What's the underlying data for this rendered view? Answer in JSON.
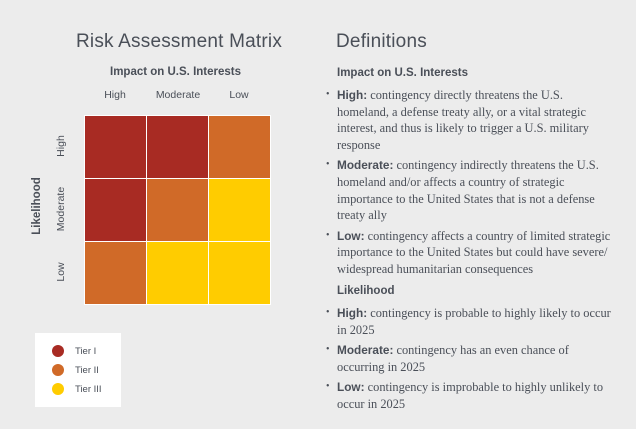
{
  "matrix": {
    "title": "Risk Assessment Matrix",
    "x_title": "Impact on U.S. Interests",
    "y_title": "Likelihood",
    "columns": [
      "High",
      "Moderate",
      "Low"
    ],
    "rows": [
      "High",
      "Moderate",
      "Low"
    ],
    "cells": [
      [
        "Tier I",
        "Tier I",
        "Tier II"
      ],
      [
        "Tier I",
        "Tier II",
        "Tier III"
      ],
      [
        "Tier II",
        "Tier III",
        "Tier III"
      ]
    ]
  },
  "legend": [
    {
      "label": "Tier I",
      "color": "#a82b23"
    },
    {
      "label": "Tier II",
      "color": "#d06a28"
    },
    {
      "label": "Tier III",
      "color": "#ffcc00"
    }
  ],
  "definitions": {
    "title": "Definitions",
    "impact": {
      "heading": "Impact on U.S. Interests",
      "items": [
        {
          "term": "High:",
          "text": " contingency directly threatens the U.S. homeland, a defense treaty ally, or a vital strategic interest, and thus is likely to trigger a U.S. military response"
        },
        {
          "term": "Moderate:",
          "text": " contingency indirectly threatens the U.S. homeland and/or affects a country of strategic importance to the United States that is not a defense treaty ally"
        },
        {
          "term": "Low:",
          "text": " contingency affects a country of limited strategic importance to the United States but could have severe/ widespread humanitarian consequences"
        }
      ]
    },
    "likelihood": {
      "heading": "Likelihood",
      "items": [
        {
          "term": "High:",
          "text": " contingency is probable to highly likely to occur in 2025"
        },
        {
          "term": "Moderate:",
          "text": " contingency has an even chance of occurring in 2025"
        },
        {
          "term": "Low:",
          "text": " contingency is improbable to highly unlikely to occur in 2025"
        }
      ]
    }
  }
}
